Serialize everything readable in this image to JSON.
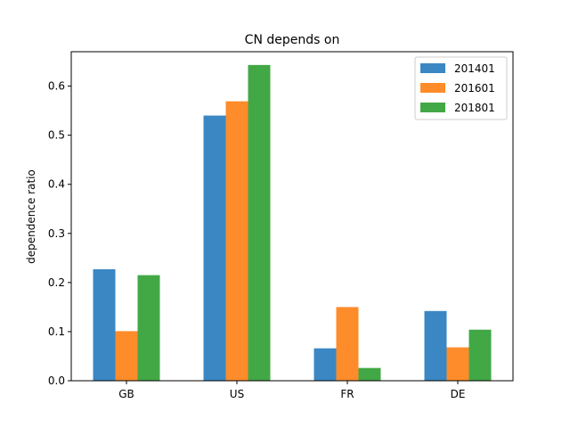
{
  "chart_data": {
    "type": "bar",
    "title": "CN depends on",
    "xlabel": "",
    "ylabel": "dependence ratio",
    "categories": [
      "GB",
      "US",
      "FR",
      "DE"
    ],
    "series": [
      {
        "name": "201401",
        "values": [
          0.227,
          0.54,
          0.066,
          0.142
        ],
        "color": "#3a87c4"
      },
      {
        "name": "201601",
        "values": [
          0.101,
          0.569,
          0.15,
          0.068
        ],
        "color": "#ff8c2a"
      },
      {
        "name": "201801",
        "values": [
          0.215,
          0.643,
          0.026,
          0.104
        ],
        "color": "#42a845"
      }
    ],
    "ylim": [
      0,
      0.67
    ],
    "yticks": [
      "0.0",
      "0.1",
      "0.2",
      "0.3",
      "0.4",
      "0.5",
      "0.6"
    ],
    "grid": false,
    "legend_position": "top-right"
  }
}
